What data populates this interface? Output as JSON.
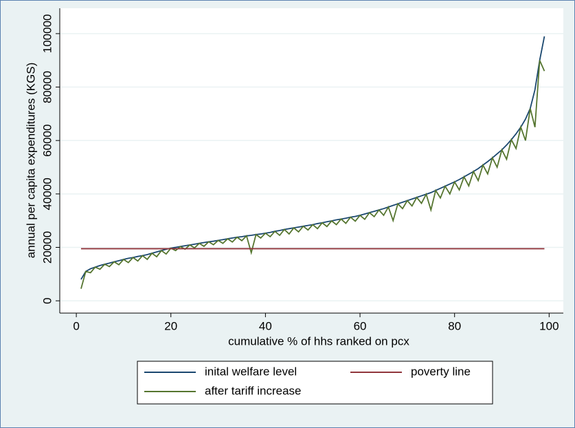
{
  "chart_data": {
    "type": "line",
    "xlabel": "cumulative % of hhs ranked on pcx",
    "ylabel": "annual per capita expenditures (KGS)",
    "x": [
      1,
      2,
      3,
      4,
      5,
      6,
      7,
      8,
      9,
      10,
      11,
      12,
      13,
      14,
      15,
      16,
      17,
      18,
      19,
      20,
      21,
      22,
      23,
      24,
      25,
      26,
      27,
      28,
      29,
      30,
      31,
      32,
      33,
      34,
      35,
      36,
      37,
      38,
      39,
      40,
      41,
      42,
      43,
      44,
      45,
      46,
      47,
      48,
      49,
      50,
      51,
      52,
      53,
      54,
      55,
      56,
      57,
      58,
      59,
      60,
      61,
      62,
      63,
      64,
      65,
      66,
      67,
      68,
      69,
      70,
      71,
      72,
      73,
      74,
      75,
      76,
      77,
      78,
      79,
      80,
      81,
      82,
      83,
      84,
      85,
      86,
      87,
      88,
      89,
      90,
      91,
      92,
      93,
      94,
      95,
      96,
      97,
      98,
      99
    ],
    "series": [
      {
        "name": "inital welfare level",
        "color": "#1a476f",
        "values": [
          8000,
          11000,
          12000,
          12600,
          13200,
          13700,
          14100,
          14600,
          15000,
          15500,
          15900,
          16200,
          16600,
          16900,
          17300,
          17800,
          18300,
          18800,
          19300,
          19700,
          20000,
          20300,
          20600,
          20900,
          21200,
          21500,
          21800,
          22100,
          22300,
          22600,
          22900,
          23200,
          23500,
          23800,
          24000,
          24300,
          24500,
          24800,
          25000,
          25300,
          25600,
          26000,
          26300,
          26700,
          27000,
          27300,
          27600,
          27900,
          28200,
          28500,
          28900,
          29200,
          29600,
          29900,
          30300,
          30600,
          30900,
          31300,
          31600,
          32000,
          32500,
          33000,
          33500,
          34000,
          34500,
          35100,
          35700,
          36300,
          36900,
          37500,
          38100,
          38700,
          39300,
          39900,
          40500,
          41300,
          42100,
          42900,
          43700,
          44500,
          45400,
          46400,
          47400,
          48400,
          49500,
          50800,
          52100,
          53500,
          55000,
          56500,
          58300,
          60300,
          62500,
          65000,
          68000,
          72000,
          79000,
          90000,
          99000
        ]
      },
      {
        "name": "poverty line",
        "color": "#90353b",
        "x": [
          1,
          99
        ],
        "values": [
          19500,
          19500
        ]
      },
      {
        "name": "after tariff increase",
        "color": "#55752f",
        "values": [
          4500,
          11000,
          10500,
          12600,
          11800,
          13700,
          12800,
          14600,
          13500,
          15500,
          14300,
          16200,
          14900,
          16900,
          15500,
          17800,
          16500,
          18800,
          17500,
          19700,
          18800,
          20300,
          19300,
          20900,
          19800,
          21500,
          20400,
          22100,
          21000,
          22600,
          21500,
          23200,
          22000,
          23800,
          22500,
          24300,
          18000,
          24800,
          23500,
          25300,
          24000,
          26000,
          24500,
          26700,
          25000,
          27300,
          25800,
          27900,
          26500,
          28500,
          27000,
          29200,
          27800,
          29900,
          28500,
          30600,
          29000,
          31300,
          29800,
          32000,
          30500,
          33000,
          31500,
          34000,
          32000,
          35100,
          30000,
          36300,
          34500,
          37500,
          35500,
          38700,
          36500,
          39900,
          34000,
          41300,
          38500,
          42900,
          40000,
          44500,
          41500,
          46400,
          43000,
          48400,
          45000,
          50800,
          47500,
          53500,
          50000,
          56500,
          53000,
          60300,
          57000,
          65000,
          60000,
          72000,
          65000,
          90000,
          86000
        ]
      }
    ],
    "xlim": [
      -3.5,
      103
    ],
    "ylim": [
      -4600,
      109500
    ],
    "xticks": [
      0,
      20,
      40,
      60,
      80,
      100
    ],
    "yticks": [
      0,
      20000,
      40000,
      60000,
      80000,
      100000
    ],
    "grid": true
  }
}
